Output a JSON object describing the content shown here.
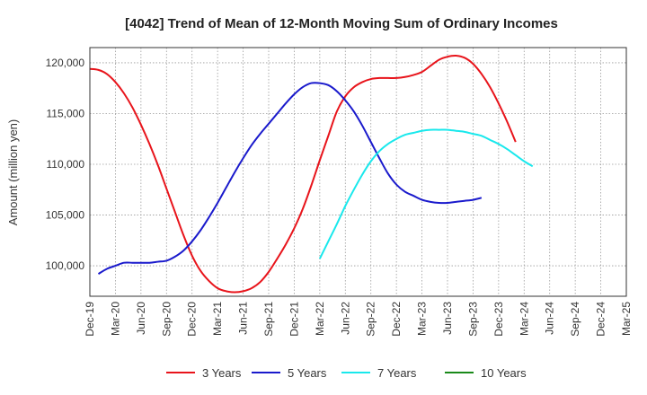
{
  "chart_data": {
    "type": "line",
    "title": "[4042]  Trend of Mean of 12-Month Moving Sum of Ordinary Incomes",
    "xlabel": "",
    "ylabel": "Amount (million yen)",
    "ylim": [
      97000,
      121500
    ],
    "y_ticks": [
      100000,
      105000,
      110000,
      115000,
      120000
    ],
    "y_tick_labels": [
      "100,000",
      "105,000",
      "110,000",
      "115,000",
      "120,000"
    ],
    "x_tick_labels": [
      "Dec-19",
      "Mar-20",
      "Jun-20",
      "Sep-20",
      "Dec-20",
      "Mar-21",
      "Jun-21",
      "Sep-21",
      "Dec-21",
      "Mar-22",
      "Jun-22",
      "Sep-22",
      "Dec-22",
      "Mar-23",
      "Jun-23",
      "Sep-23",
      "Dec-23",
      "Mar-24",
      "Jun-24",
      "Sep-24",
      "Dec-24",
      "Mar-25"
    ],
    "x_start": "Dec-19",
    "grid": true,
    "legend_position": "bottom",
    "series": [
      {
        "name": "3 Years",
        "color": "#e8141b",
        "start_index": 0,
        "values": [
          119400,
          119300,
          118900,
          118100,
          117000,
          115600,
          113900,
          112000,
          109900,
          107600,
          105300,
          103000,
          101000,
          99500,
          98500,
          97800,
          97500,
          97400,
          97500,
          97800,
          98400,
          99400,
          100700,
          102100,
          103700,
          105600,
          107900,
          110400,
          112800,
          115200,
          116700,
          117600,
          118100,
          118400,
          118500,
          118500,
          118500,
          118600,
          118800,
          119100,
          119700,
          120300,
          120600,
          120700,
          120500,
          119900,
          118900,
          117600,
          116000,
          114200,
          112200
        ]
      },
      {
        "name": "5 Years",
        "color": "#1a1acc",
        "start_index": 1,
        "values": [
          99200,
          99700,
          100000,
          100300,
          100300,
          100300,
          100300,
          100400,
          100500,
          100900,
          101500,
          102400,
          103500,
          104800,
          106200,
          107700,
          109200,
          110600,
          111900,
          113000,
          114000,
          115000,
          116000,
          116900,
          117600,
          118000,
          118000,
          117800,
          117200,
          116300,
          115200,
          113800,
          112200,
          110600,
          109100,
          108000,
          107300,
          106900,
          106500,
          106300,
          106200,
          106200,
          106300,
          106400,
          106500,
          106700
        ]
      },
      {
        "name": "7 Years",
        "color": "#19e8ec",
        "start_index": 27,
        "values": [
          100700,
          102400,
          104100,
          105900,
          107500,
          109000,
          110300,
          111300,
          112000,
          112500,
          112900,
          113100,
          113300,
          113400,
          113400,
          113400,
          113300,
          113200,
          113000,
          112800,
          112400,
          112000,
          111500,
          110900,
          110300,
          109800
        ]
      },
      {
        "name": "10 Years",
        "color": "#1a8a1a",
        "start_index": 0,
        "values": []
      }
    ]
  }
}
